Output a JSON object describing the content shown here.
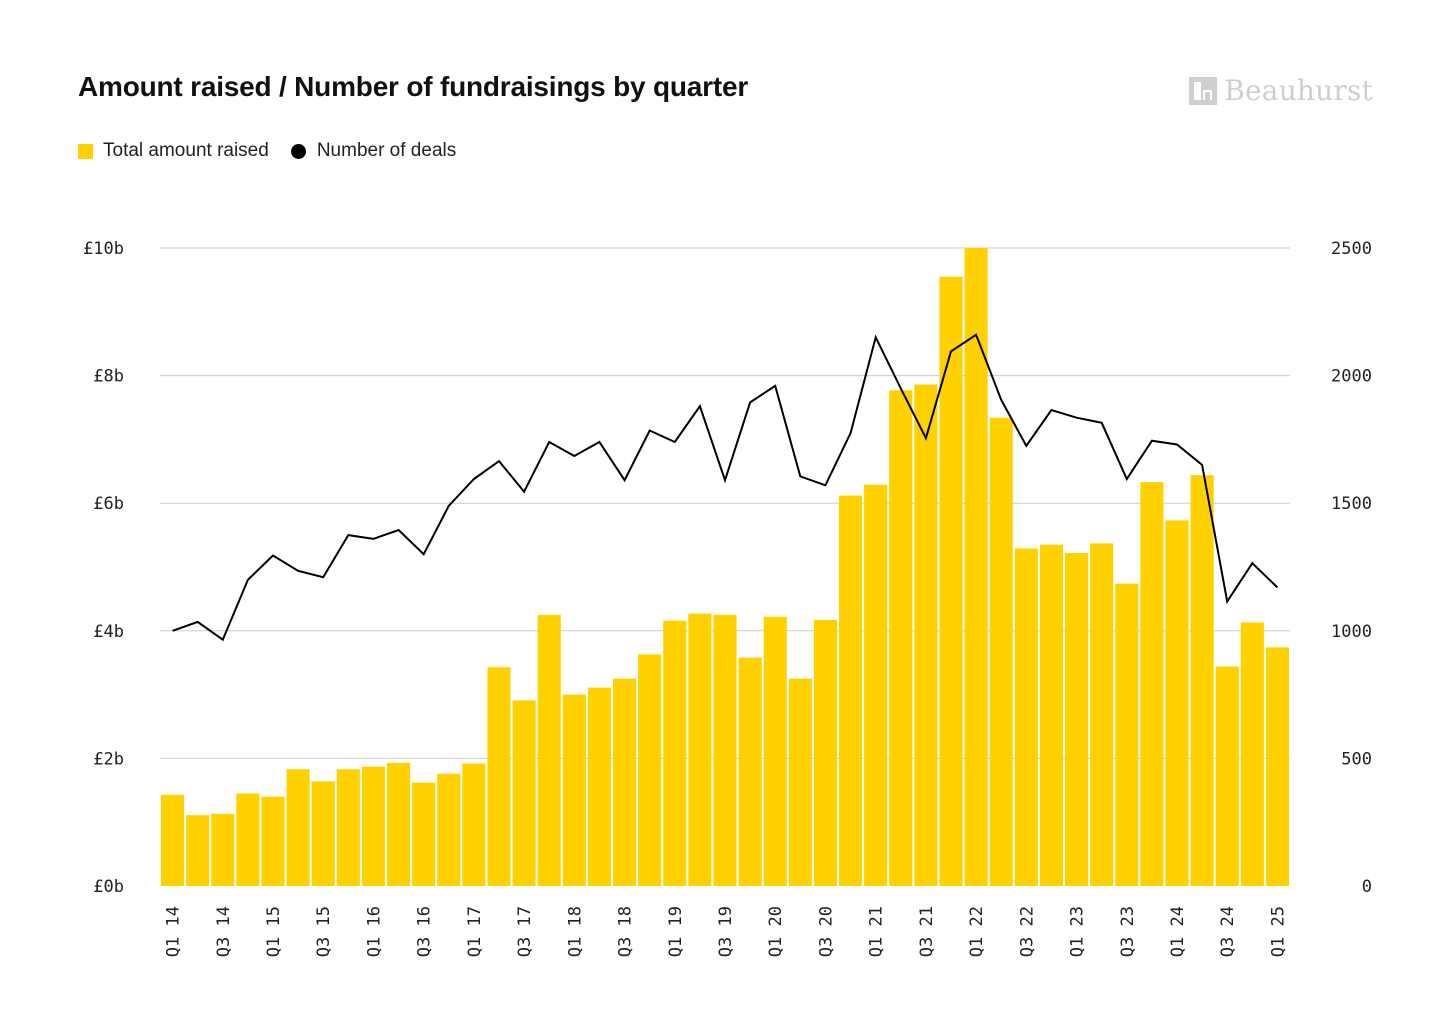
{
  "title": "Amount raised / Number of fundraisings by quarter",
  "brand": {
    "name": "Beauhurst",
    "icon": "beauhurst-logo-icon",
    "color": "#cfcfcf"
  },
  "legend": [
    {
      "label": "Total amount raised",
      "marker": "square",
      "color": "#FFD100"
    },
    {
      "label": "Number of deals",
      "marker": "dot",
      "color": "#000000"
    }
  ],
  "chart_data": {
    "type": "bar",
    "categories": [
      "Q1 14",
      "Q2 14",
      "Q3 14",
      "Q4 14",
      "Q1 15",
      "Q2 15",
      "Q3 15",
      "Q4 15",
      "Q1 16",
      "Q2 16",
      "Q3 16",
      "Q4 16",
      "Q1 17",
      "Q2 17",
      "Q3 17",
      "Q4 17",
      "Q1 18",
      "Q2 18",
      "Q3 18",
      "Q4 18",
      "Q1 19",
      "Q2 19",
      "Q3 19",
      "Q4 19",
      "Q1 20",
      "Q2 20",
      "Q3 20",
      "Q4 20",
      "Q1 21",
      "Q2 21",
      "Q3 21",
      "Q4 21",
      "Q1 22",
      "Q2 22",
      "Q3 22",
      "Q4 22",
      "Q1 23",
      "Q2 23",
      "Q3 23",
      "Q4 23",
      "Q1 24",
      "Q2 24",
      "Q3 24",
      "Q4 24",
      "Q1 25"
    ],
    "x_tick_labels": [
      "Q1 14",
      "Q3 14",
      "Q1 15",
      "Q3 15",
      "Q1 16",
      "Q3 16",
      "Q1 17",
      "Q3 17",
      "Q1 18",
      "Q3 18",
      "Q1 19",
      "Q3 19",
      "Q1 20",
      "Q3 20",
      "Q1 21",
      "Q3 21",
      "Q1 22",
      "Q3 22",
      "Q1 23",
      "Q3 23",
      "Q1 24",
      "Q3 24",
      "Q1 25"
    ],
    "series": [
      {
        "name": "Total amount raised",
        "type": "bar",
        "axis": "left",
        "color": "#FFD100",
        "values": [
          1.43,
          1.11,
          1.13,
          1.45,
          1.4,
          1.83,
          1.64,
          1.83,
          1.87,
          1.93,
          1.62,
          1.76,
          1.92,
          3.43,
          2.91,
          4.25,
          3.0,
          3.11,
          3.25,
          3.63,
          4.16,
          4.27,
          4.25,
          3.58,
          4.22,
          3.25,
          4.17,
          6.12,
          6.29,
          7.77,
          7.86,
          9.55,
          10.0,
          7.34,
          5.29,
          5.35,
          5.22,
          5.37,
          4.74,
          6.33,
          5.73,
          6.44,
          3.44,
          4.13,
          3.74
        ]
      },
      {
        "name": "Number of deals",
        "type": "line",
        "axis": "right",
        "color": "#000000",
        "values": [
          1000,
          1035,
          965,
          1200,
          1295,
          1235,
          1210,
          1375,
          1360,
          1395,
          1300,
          1490,
          1595,
          1665,
          1545,
          1740,
          1685,
          1740,
          1590,
          1785,
          1740,
          1880,
          1590,
          1895,
          1960,
          1605,
          1570,
          1775,
          2150,
          1950,
          1755,
          2095,
          2160,
          1905,
          1725,
          1865,
          1835,
          1815,
          1595,
          1745,
          1730,
          1650,
          1115,
          1265,
          1170
        ]
      }
    ],
    "y_left": {
      "ticks": [
        "£0b",
        "£2b",
        "£4b",
        "£6b",
        "£8b",
        "£10b"
      ],
      "values": [
        0,
        2,
        4,
        6,
        8,
        10
      ],
      "ylim": [
        0,
        10
      ]
    },
    "y_right": {
      "ticks": [
        "0",
        "500",
        "1000",
        "1500",
        "2000",
        "2500"
      ],
      "values": [
        0,
        500,
        1000,
        1500,
        2000,
        2500
      ],
      "ylim": [
        0,
        2500
      ]
    },
    "grid": true,
    "legend_position": "top-left"
  }
}
